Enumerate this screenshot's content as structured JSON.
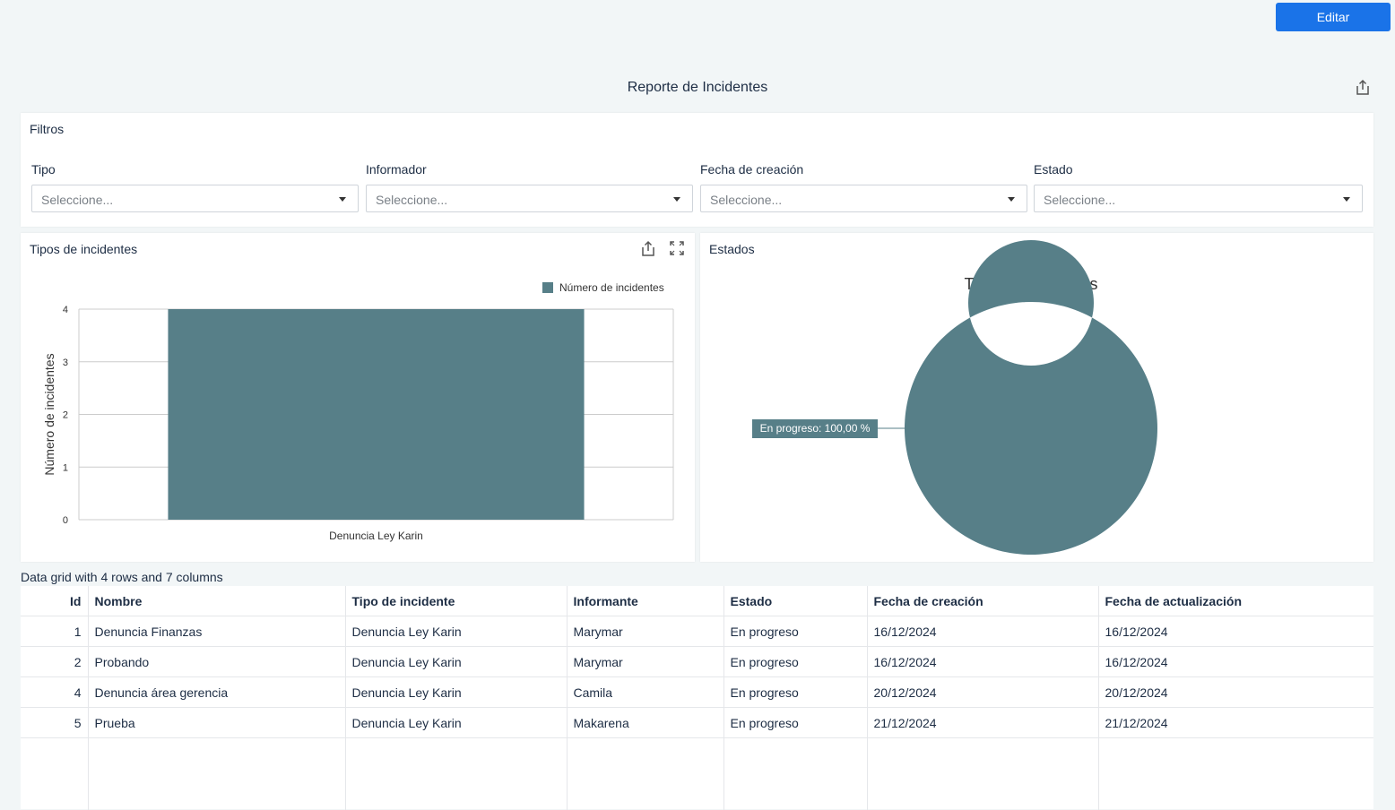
{
  "header": {
    "edit_label": "Editar",
    "title": "Reporte de Incidentes"
  },
  "filters": {
    "title": "Filtros",
    "fields": [
      {
        "label": "Tipo",
        "placeholder": "Seleccione..."
      },
      {
        "label": "Informador",
        "placeholder": "Seleccione..."
      },
      {
        "label": "Fecha de creación",
        "placeholder": "Seleccione..."
      },
      {
        "label": "Estado",
        "placeholder": "Seleccione..."
      }
    ]
  },
  "bar_panel": {
    "title": "Tipos de incidentes"
  },
  "pie_panel": {
    "title": "Estados"
  },
  "colors": {
    "accent": "#1a73e8",
    "series": "#577f88"
  },
  "chart_data": [
    {
      "type": "bar",
      "categories": [
        "Denuncia Ley Karin"
      ],
      "series": [
        {
          "name": "Número de incidentes",
          "values": [
            4
          ]
        }
      ],
      "ylabel": "Número de incidentes",
      "xlabel": "",
      "ylim": [
        0,
        4
      ],
      "yticks": [
        "0",
        "1",
        "2",
        "3",
        "4"
      ],
      "grid": true,
      "legend": "top-right"
    },
    {
      "type": "pie",
      "title": "Total de incidentes",
      "donut": true,
      "slices": [
        {
          "label": "En progreso",
          "value": 100,
          "display": "En progreso: 100,00 %"
        }
      ]
    }
  ],
  "grid": {
    "caption": "Data grid with 4 rows and 7 columns",
    "columns": [
      "Id",
      "Nombre",
      "Tipo de incidente",
      "Informante",
      "Estado",
      "Fecha de creación",
      "Fecha de actualización"
    ],
    "rows": [
      [
        "1",
        "Denuncia Finanzas",
        "Denuncia Ley Karin",
        "Marymar",
        "En progreso",
        "16/12/2024",
        "16/12/2024"
      ],
      [
        "2",
        "Probando",
        "Denuncia Ley Karin",
        "Marymar",
        "En progreso",
        "16/12/2024",
        "16/12/2024"
      ],
      [
        "4",
        "Denuncia área gerencia",
        "Denuncia Ley Karin",
        "Camila",
        "En progreso",
        "20/12/2024",
        "20/12/2024"
      ],
      [
        "5",
        "Prueba",
        "Denuncia Ley Karin",
        "Makarena",
        "En progreso",
        "21/12/2024",
        "21/12/2024"
      ]
    ]
  }
}
